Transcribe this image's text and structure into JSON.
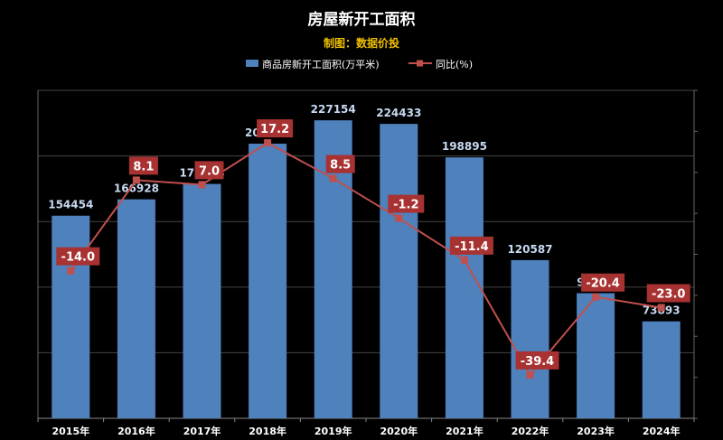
{
  "chart_data": {
    "type": "bar",
    "title": "房屋新开工面积",
    "subtitle": "制图：数据价投",
    "categories": [
      "2015年",
      "2016年",
      "2017年",
      "2018年",
      "2019年",
      "2020年",
      "2021年",
      "2022年",
      "2023年",
      "2024年"
    ],
    "series": [
      {
        "name": "商品房新开工面积(万平米)",
        "type": "bar",
        "axis": "left",
        "color": "#4f81bd",
        "values": [
          154454,
          166928,
          178654,
          209342,
          227154,
          224433,
          198895,
          120587,
          95376,
          73893
        ],
        "labels": [
          "154454",
          "166928",
          "178654",
          "209342",
          "227154",
          "224433",
          "198895",
          "120587",
          "95376",
          "73893"
        ]
      },
      {
        "name": "同比(%)",
        "type": "line",
        "axis": "right",
        "color": "#c0504d",
        "values": [
          -14.0,
          8.1,
          7.0,
          17.2,
          8.5,
          -1.2,
          -11.4,
          -39.4,
          -20.4,
          -23.0
        ],
        "labels": [
          "-14.0",
          "8.1",
          "7.0",
          "17.2",
          "8.5",
          "-1.2",
          "-11.4",
          "-39.4",
          "-20.4",
          "-23.0"
        ]
      }
    ],
    "ylim_left": [
      0,
      250000
    ],
    "ylim_right": [
      -50,
      30
    ],
    "grid": true,
    "legend_position": "top-center"
  },
  "colors": {
    "background": "#000000",
    "title": "#ffffff",
    "subtitle": "#f0c000",
    "bar": "#4f81bd",
    "line": "#c0504d",
    "bar_label": "#c6d9f1",
    "line_label_bg": "#a83232",
    "axis_text": "#ffffff",
    "grid": "#444444"
  }
}
